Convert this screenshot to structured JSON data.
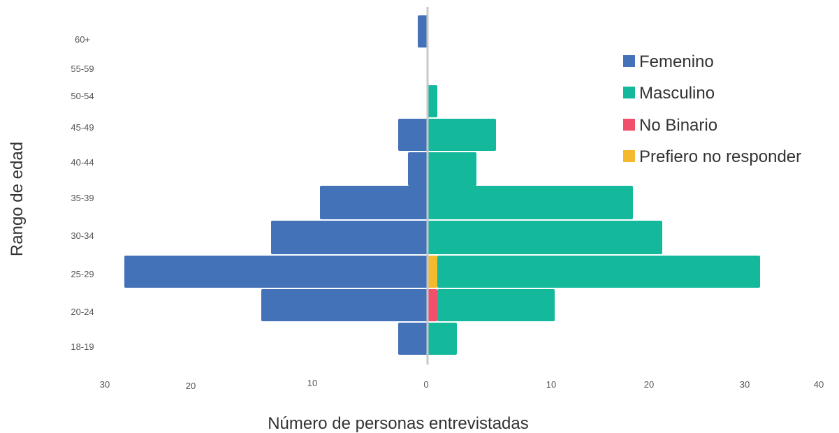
{
  "chart_data": {
    "type": "bar",
    "orientation": "horizontal-diverging",
    "title": "",
    "xlabel": "Número de personas entrevistadas",
    "ylabel": "Rango de edad",
    "categories": [
      "60+",
      "55-59",
      "50-54",
      "45-49",
      "40-44",
      "35-39",
      "30-34",
      "25-29",
      "20-24",
      "18-19"
    ],
    "series": [
      {
        "name": "Femenino",
        "side": "left",
        "color": "#4472b8",
        "values": [
          1,
          0,
          0,
          3,
          2,
          11,
          16,
          31,
          17,
          3
        ]
      },
      {
        "name": "Masculino",
        "side": "right",
        "color": "#14b89b",
        "values": [
          0,
          0,
          1,
          7,
          5,
          21,
          24,
          33,
          12,
          3
        ]
      },
      {
        "name": "No Binario",
        "side": "right",
        "color": "#f0506a",
        "values": [
          0,
          0,
          0,
          0,
          0,
          0,
          0,
          0,
          1,
          0
        ]
      },
      {
        "name": "Prefiero no responder",
        "side": "right",
        "color": "#f4b92d",
        "values": [
          0,
          0,
          0,
          0,
          0,
          0,
          0,
          1,
          0,
          0
        ]
      }
    ],
    "x_ticks_left": [
      "30",
      "20",
      "10",
      "0"
    ],
    "x_ticks_right": [
      "10",
      "20",
      "30",
      "40"
    ],
    "xlim": [
      -33,
      40
    ],
    "legend_position": "top-right",
    "grid": false
  }
}
